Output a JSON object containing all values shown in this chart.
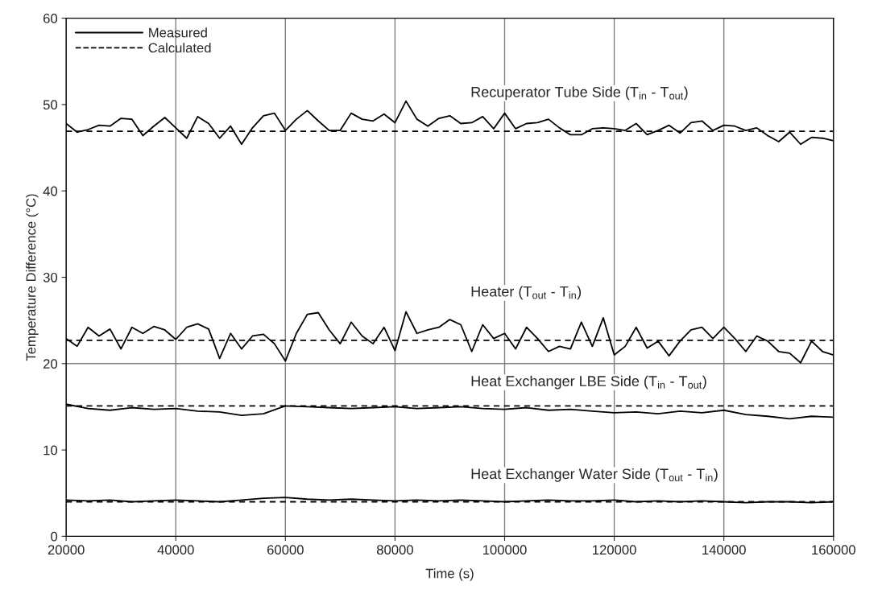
{
  "chart_data": {
    "type": "line",
    "xlabel": "Time (s)",
    "ylabel": "Temperature Difference (°C)",
    "xlim": [
      20000,
      160000
    ],
    "xticks": [
      20000,
      40000,
      60000,
      80000,
      100000,
      120000,
      140000,
      160000
    ],
    "ylim": [
      0,
      60
    ],
    "yticks": [
      0,
      10,
      20,
      30,
      40,
      50,
      60
    ],
    "grid": "x",
    "legend": "top left",
    "ref_lines": [
      {
        "axis": "y",
        "value": 20,
        "color": "#808080"
      }
    ],
    "annotations": [
      "Recuperator Tube Side (T$_{in}$ - T$_{out}$)",
      "Heater (T$_{out}$ - T$_{in}$)",
      "Heat Exchanger LBE Side (T$_{in}$ - T$_{out}$)",
      "Heat Exchanger Water Side (T$_{out}$ - T$_{in}$)"
    ],
    "series": [
      {
        "name": "Measured",
        "color": "#000000",
        "line_style": "solid",
        "x": [
          20000,
          22000,
          24000,
          26000,
          28000,
          30000,
          32000,
          34000,
          36000,
          38000,
          40000,
          42000,
          44000,
          46000,
          48000,
          50000,
          52000,
          54000,
          56000,
          58000,
          60000,
          62000,
          64000,
          66000,
          68000,
          70000,
          72000,
          74000,
          76000,
          78000,
          80000,
          82000,
          84000,
          86000,
          88000,
          90000,
          92000,
          94000,
          96000,
          98000,
          100000,
          102000,
          104000,
          106000,
          108000,
          110000,
          112000,
          114000,
          116000,
          118000,
          120000,
          122000,
          124000,
          126000,
          128000,
          130000,
          132000,
          134000,
          136000,
          138000,
          140000,
          142000,
          144000,
          146000,
          148000,
          150000,
          152000,
          154000,
          156000,
          158000,
          160000
        ],
        "values": [
          47.8,
          46.8,
          47.1,
          47.6,
          47.5,
          48.4,
          48.3,
          46.4,
          47.5,
          48.5,
          47.3,
          46.1,
          48.6,
          47.8,
          46.1,
          47.5,
          45.4,
          47.3,
          48.7,
          49.0,
          47.0,
          48.3,
          49.3,
          48.1,
          47.0,
          47.0,
          49.0,
          48.3,
          48.1,
          48.9,
          47.9,
          50.4,
          48.3,
          47.5,
          48.4,
          48.7,
          47.8,
          47.9,
          48.6,
          47.2,
          49.0,
          47.2,
          47.8,
          47.9,
          48.3,
          47.3,
          46.5,
          46.5,
          47.2,
          47.3,
          47.2,
          47.0,
          47.8,
          46.5,
          47.0,
          47.6,
          46.7,
          47.9,
          48.1,
          47.0,
          47.6,
          47.5,
          47.0,
          47.3,
          46.4,
          45.7,
          46.8,
          45.4,
          46.2,
          46.1,
          45.8
        ]
      },
      {
        "color": "#000000",
        "line_style": "solid",
        "x": [
          20000,
          22000,
          24000,
          26000,
          28000,
          30000,
          32000,
          34000,
          36000,
          38000,
          40000,
          42000,
          44000,
          46000,
          48000,
          50000,
          52000,
          54000,
          56000,
          58000,
          60000,
          62000,
          64000,
          66000,
          68000,
          70000,
          72000,
          74000,
          76000,
          78000,
          80000,
          82000,
          84000,
          86000,
          88000,
          90000,
          92000,
          94000,
          96000,
          98000,
          100000,
          102000,
          104000,
          106000,
          108000,
          110000,
          112000,
          114000,
          116000,
          118000,
          120000,
          122000,
          124000,
          126000,
          128000,
          130000,
          132000,
          134000,
          136000,
          138000,
          140000,
          142000,
          144000,
          146000,
          148000,
          150000,
          152000,
          154000,
          156000,
          158000,
          160000
        ],
        "values": [
          22.9,
          22.0,
          24.2,
          23.2,
          24.0,
          21.7,
          24.2,
          23.5,
          24.3,
          23.9,
          22.8,
          24.2,
          24.6,
          24.0,
          20.6,
          23.5,
          21.7,
          23.2,
          23.4,
          22.3,
          20.3,
          23.5,
          25.7,
          25.9,
          23.9,
          22.3,
          24.8,
          23.2,
          22.3,
          24.2,
          21.5,
          26.0,
          23.5,
          23.9,
          24.2,
          25.1,
          24.5,
          21.4,
          24.5,
          22.9,
          23.5,
          21.7,
          24.2,
          22.9,
          21.4,
          22.0,
          21.7,
          24.8,
          22.0,
          25.3,
          21.0,
          22.0,
          24.2,
          21.8,
          22.6,
          20.9,
          22.6,
          23.9,
          24.2,
          22.9,
          24.2,
          22.9,
          21.4,
          23.2,
          22.6,
          21.4,
          21.2,
          20.1,
          22.6,
          21.4,
          21.0
        ]
      },
      {
        "color": "#000000",
        "line_style": "solid",
        "x": [
          20000,
          24000,
          28000,
          32000,
          36000,
          40000,
          44000,
          48000,
          52000,
          56000,
          60000,
          64000,
          68000,
          72000,
          76000,
          80000,
          84000,
          88000,
          92000,
          96000,
          100000,
          104000,
          108000,
          112000,
          116000,
          120000,
          124000,
          128000,
          132000,
          136000,
          140000,
          144000,
          148000,
          152000,
          156000,
          160000
        ],
        "values": [
          15.3,
          14.8,
          14.6,
          14.9,
          14.7,
          14.8,
          14.5,
          14.4,
          14.0,
          14.2,
          15.1,
          15.0,
          14.9,
          14.8,
          14.9,
          15.0,
          14.8,
          14.9,
          15.0,
          14.8,
          14.7,
          14.9,
          14.6,
          14.7,
          14.5,
          14.3,
          14.4,
          14.2,
          14.5,
          14.3,
          14.6,
          14.1,
          13.9,
          13.6,
          13.9,
          13.8
        ]
      },
      {
        "color": "#000000",
        "line_style": "solid",
        "x": [
          20000,
          24000,
          28000,
          32000,
          36000,
          40000,
          44000,
          48000,
          52000,
          56000,
          60000,
          64000,
          68000,
          72000,
          76000,
          80000,
          84000,
          88000,
          92000,
          96000,
          100000,
          104000,
          108000,
          112000,
          116000,
          120000,
          124000,
          128000,
          132000,
          136000,
          140000,
          144000,
          148000,
          152000,
          156000,
          160000
        ],
        "values": [
          4.2,
          4.1,
          4.2,
          4.0,
          4.1,
          4.2,
          4.1,
          4.0,
          4.2,
          4.4,
          4.5,
          4.3,
          4.2,
          4.3,
          4.2,
          4.1,
          4.2,
          4.1,
          4.2,
          4.1,
          4.0,
          4.1,
          4.2,
          4.1,
          4.1,
          4.2,
          4.0,
          4.1,
          4.0,
          4.1,
          4.0,
          3.9,
          4.0,
          4.0,
          3.9,
          4.0
        ]
      },
      {
        "name": "Calculated",
        "color": "#000000",
        "line_style": "dashed",
        "x": [
          20000,
          160000
        ],
        "values": [
          46.9,
          46.9
        ]
      },
      {
        "color": "#000000",
        "line_style": "dashed",
        "x": [
          20000,
          160000
        ],
        "values": [
          22.7,
          22.7
        ]
      },
      {
        "color": "#000000",
        "line_style": "dashed",
        "x": [
          20000,
          160000
        ],
        "values": [
          15.1,
          15.1
        ]
      },
      {
        "color": "#000000",
        "line_style": "dashed",
        "x": [
          20000,
          160000
        ],
        "values": [
          4.0,
          4.0
        ]
      }
    ]
  }
}
